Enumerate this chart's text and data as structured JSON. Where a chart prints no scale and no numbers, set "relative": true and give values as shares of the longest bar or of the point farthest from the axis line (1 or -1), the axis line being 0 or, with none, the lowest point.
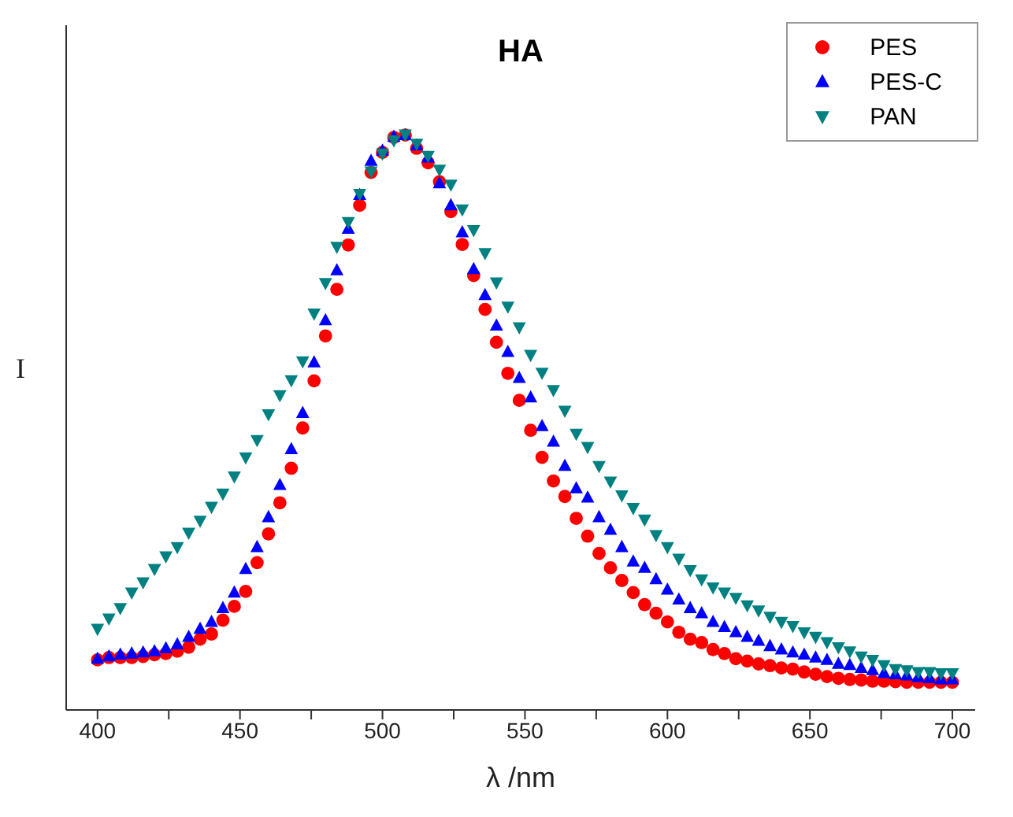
{
  "chart_data": {
    "type": "scatter",
    "title": "HA",
    "xlabel": "λ /nm",
    "ylabel": "I",
    "relative": true,
    "x": [
      400,
      404,
      408,
      412,
      416,
      420,
      424,
      428,
      432,
      436,
      440,
      444,
      448,
      452,
      456,
      460,
      464,
      468,
      472,
      476,
      480,
      484,
      488,
      492,
      496,
      500,
      504,
      508,
      512,
      516,
      520,
      524,
      528,
      532,
      536,
      540,
      544,
      548,
      552,
      556,
      560,
      564,
      568,
      572,
      576,
      580,
      584,
      588,
      592,
      596,
      600,
      604,
      608,
      612,
      616,
      620,
      624,
      628,
      632,
      636,
      640,
      644,
      648,
      652,
      656,
      660,
      664,
      668,
      672,
      676,
      680,
      684,
      688,
      692,
      696,
      700
    ],
    "xlim": [
      389,
      708
    ],
    "xticks": [
      400,
      {
        "value": 425,
        "label": null
      },
      450,
      {
        "value": 475,
        "label": null
      },
      500,
      {
        "value": 525,
        "label": null
      },
      550,
      {
        "value": 575,
        "label": null
      },
      600,
      {
        "value": 625,
        "label": null
      },
      650,
      {
        "value": 675,
        "label": null
      },
      700
    ],
    "grid": false,
    "legend": "top right",
    "series": [
      {
        "name": "PES",
        "color": "#ff0000",
        "marker": "circle",
        "values": [
          0.087,
          0.091,
          0.091,
          0.091,
          0.093,
          0.096,
          0.098,
          0.102,
          0.109,
          0.123,
          0.132,
          0.156,
          0.18,
          0.206,
          0.256,
          0.306,
          0.36,
          0.42,
          0.49,
          0.572,
          0.65,
          0.731,
          0.808,
          0.877,
          0.934,
          0.969,
          0.995,
          0.999,
          0.976,
          0.951,
          0.918,
          0.866,
          0.809,
          0.755,
          0.696,
          0.639,
          0.585,
          0.538,
          0.486,
          0.439,
          0.398,
          0.371,
          0.333,
          0.302,
          0.272,
          0.247,
          0.225,
          0.204,
          0.183,
          0.168,
          0.153,
          0.135,
          0.123,
          0.117,
          0.105,
          0.098,
          0.089,
          0.085,
          0.08,
          0.077,
          0.073,
          0.071,
          0.066,
          0.062,
          0.058,
          0.055,
          0.053,
          0.052,
          0.05,
          0.05,
          0.049,
          0.048,
          0.048,
          0.048,
          0.048,
          0.048
        ]
      },
      {
        "name": "PES-C",
        "color": "#0000ff",
        "marker": "triangle",
        "values": [
          0.089,
          0.093,
          0.096,
          0.098,
          0.1,
          0.102,
          0.107,
          0.114,
          0.127,
          0.141,
          0.153,
          0.177,
          0.204,
          0.245,
          0.283,
          0.335,
          0.391,
          0.453,
          0.516,
          0.604,
          0.677,
          0.764,
          0.836,
          0.895,
          0.954,
          0.972,
          0.996,
          0.999,
          0.981,
          0.96,
          0.915,
          0.877,
          0.83,
          0.766,
          0.721,
          0.668,
          0.622,
          0.577,
          0.543,
          0.493,
          0.466,
          0.424,
          0.385,
          0.369,
          0.335,
          0.313,
          0.283,
          0.258,
          0.247,
          0.227,
          0.209,
          0.192,
          0.177,
          0.168,
          0.153,
          0.144,
          0.135,
          0.127,
          0.12,
          0.111,
          0.105,
          0.1,
          0.096,
          0.091,
          0.087,
          0.08,
          0.078,
          0.073,
          0.069,
          0.064,
          0.062,
          0.06,
          0.057,
          0.055,
          0.053,
          0.053
        ]
      },
      {
        "name": "PAN",
        "color": "#008080",
        "marker": "triangle-down",
        "values": [
          0.141,
          0.159,
          0.177,
          0.204,
          0.222,
          0.245,
          0.267,
          0.283,
          0.308,
          0.329,
          0.353,
          0.376,
          0.406,
          0.439,
          0.469,
          0.514,
          0.547,
          0.573,
          0.606,
          0.689,
          0.742,
          0.805,
          0.848,
          0.897,
          0.936,
          0.967,
          0.99,
          1,
          0.984,
          0.963,
          0.939,
          0.913,
          0.87,
          0.834,
          0.794,
          0.743,
          0.701,
          0.665,
          0.617,
          0.586,
          0.556,
          0.52,
          0.48,
          0.457,
          0.424,
          0.397,
          0.373,
          0.351,
          0.331,
          0.304,
          0.283,
          0.263,
          0.243,
          0.227,
          0.213,
          0.204,
          0.195,
          0.182,
          0.173,
          0.162,
          0.153,
          0.146,
          0.135,
          0.127,
          0.118,
          0.109,
          0.102,
          0.093,
          0.087,
          0.078,
          0.071,
          0.069,
          0.066,
          0.066,
          0.064,
          0.064
        ]
      }
    ]
  }
}
